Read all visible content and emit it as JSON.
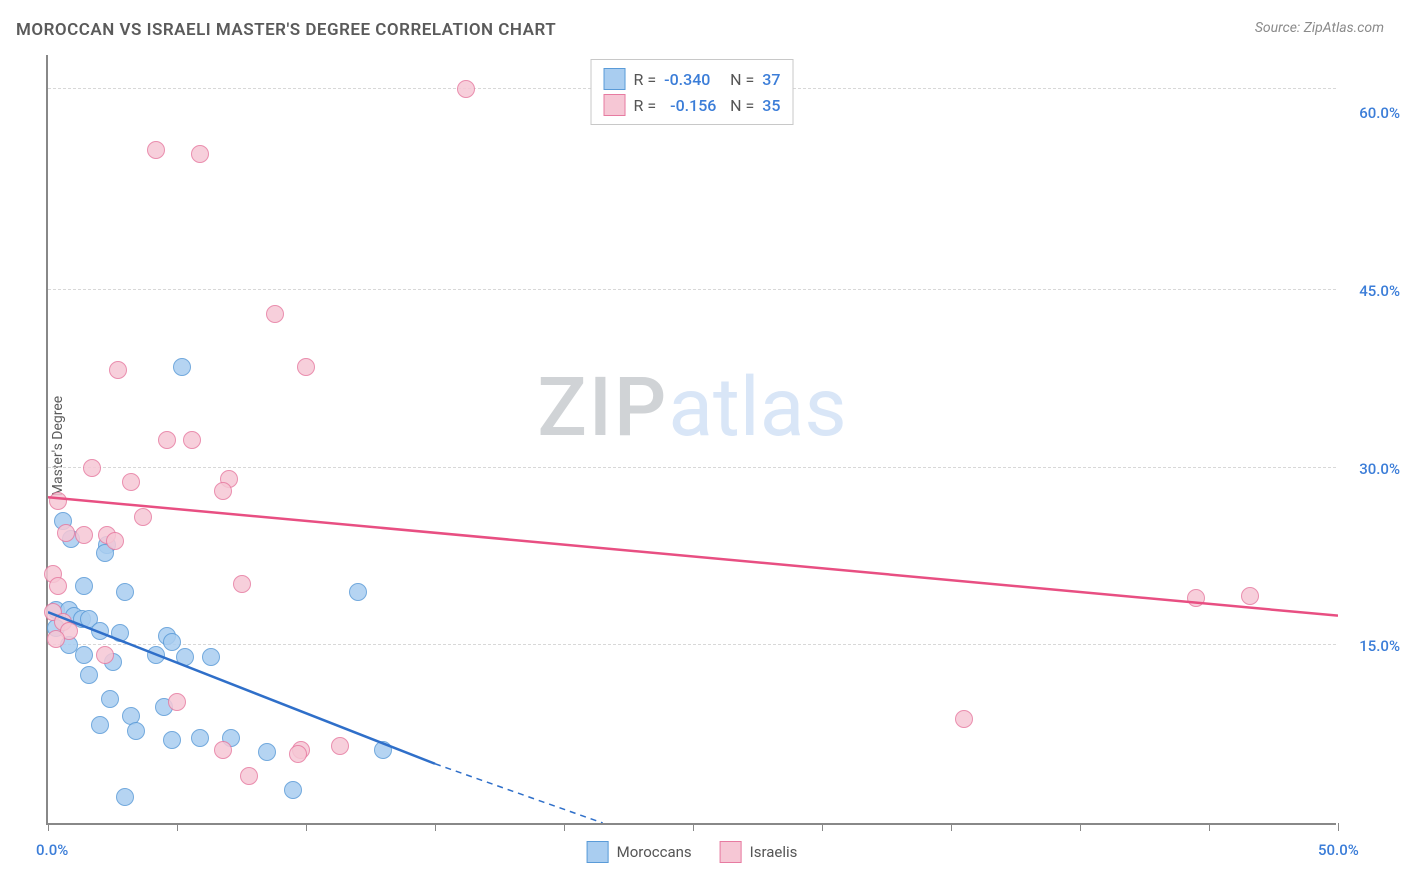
{
  "title": "MOROCCAN VS ISRAELI MASTER'S DEGREE CORRELATION CHART",
  "source": "Source: ZipAtlas.com",
  "y_axis_label": "Master's Degree",
  "watermark": {
    "part1": "ZIP",
    "part2": "atlas"
  },
  "chart": {
    "type": "scatter",
    "xlim": [
      0,
      50
    ],
    "ylim": [
      0,
      65
    ],
    "background_color": "#ffffff",
    "grid_color": "#d8d8d8",
    "x_axis": {
      "tick_positions": [
        0,
        5,
        10,
        15,
        20,
        25,
        30,
        35,
        40,
        45,
        50
      ],
      "labels": [
        {
          "pos": 0,
          "text": "0.0%"
        },
        {
          "pos": 50,
          "text": "50.0%"
        }
      ],
      "label_color": "#3b7dd8",
      "label_fontsize": 15
    },
    "y_axis": {
      "grid_positions": [
        15,
        30,
        45,
        62
      ],
      "labels": [
        {
          "pos": 15,
          "text": "15.0%"
        },
        {
          "pos": 30,
          "text": "30.0%"
        },
        {
          "pos": 45,
          "text": "45.0%"
        },
        {
          "pos": 60,
          "text": "60.0%"
        }
      ],
      "label_color": "#3b7dd8",
      "label_fontsize": 15
    },
    "series": [
      {
        "name": "Moroccans",
        "marker_fill": "#a9cdf0",
        "marker_stroke": "#5a9bd8",
        "marker_radius": 9,
        "marker_opacity": 0.85,
        "trend": {
          "color": "#2f6fc9",
          "width": 2.5,
          "x1": 0,
          "y1": 17.8,
          "x2_solid": 15,
          "y2_solid": 5.0,
          "x2_dash": 21.5,
          "y2_dash": 0
        },
        "points": [
          {
            "x": 5.2,
            "y": 38.5
          },
          {
            "x": 0.6,
            "y": 25.5
          },
          {
            "x": 0.9,
            "y": 24.0
          },
          {
            "x": 2.3,
            "y": 23.5
          },
          {
            "x": 2.2,
            "y": 22.8
          },
          {
            "x": 1.4,
            "y": 20.0
          },
          {
            "x": 3.0,
            "y": 19.5
          },
          {
            "x": 12.0,
            "y": 19.5
          },
          {
            "x": 0.3,
            "y": 18.0
          },
          {
            "x": 0.8,
            "y": 18.0
          },
          {
            "x": 1.0,
            "y": 17.5
          },
          {
            "x": 1.3,
            "y": 17.2
          },
          {
            "x": 1.6,
            "y": 17.2
          },
          {
            "x": 0.3,
            "y": 16.5
          },
          {
            "x": 2.0,
            "y": 16.2
          },
          {
            "x": 2.8,
            "y": 16.0
          },
          {
            "x": 4.6,
            "y": 15.8
          },
          {
            "x": 4.8,
            "y": 15.3
          },
          {
            "x": 0.8,
            "y": 15.0
          },
          {
            "x": 4.2,
            "y": 14.2
          },
          {
            "x": 1.4,
            "y": 14.2
          },
          {
            "x": 2.5,
            "y": 13.6
          },
          {
            "x": 5.3,
            "y": 14.0
          },
          {
            "x": 6.3,
            "y": 14.0
          },
          {
            "x": 1.6,
            "y": 12.5
          },
          {
            "x": 2.4,
            "y": 10.5
          },
          {
            "x": 3.2,
            "y": 9.0
          },
          {
            "x": 4.5,
            "y": 9.8
          },
          {
            "x": 2.0,
            "y": 8.3
          },
          {
            "x": 3.4,
            "y": 7.8
          },
          {
            "x": 4.8,
            "y": 7.0
          },
          {
            "x": 5.9,
            "y": 7.2
          },
          {
            "x": 7.1,
            "y": 7.2
          },
          {
            "x": 13.0,
            "y": 6.2
          },
          {
            "x": 9.5,
            "y": 2.8
          },
          {
            "x": 3.0,
            "y": 2.2
          },
          {
            "x": 8.5,
            "y": 6.0
          }
        ]
      },
      {
        "name": "Israelis",
        "marker_fill": "#f6c7d5",
        "marker_stroke": "#e77ba1",
        "marker_radius": 9,
        "marker_opacity": 0.85,
        "trend": {
          "color": "#e84f82",
          "width": 2.5,
          "x1": 0,
          "y1": 27.5,
          "x2_solid": 50,
          "y2_solid": 17.5
        },
        "points": [
          {
            "x": 16.2,
            "y": 62.0
          },
          {
            "x": 4.2,
            "y": 56.8
          },
          {
            "x": 5.9,
            "y": 56.5
          },
          {
            "x": 8.8,
            "y": 43.0
          },
          {
            "x": 2.7,
            "y": 38.2
          },
          {
            "x": 10.0,
            "y": 38.5
          },
          {
            "x": 4.6,
            "y": 32.3
          },
          {
            "x": 5.6,
            "y": 32.3
          },
          {
            "x": 1.7,
            "y": 30.0
          },
          {
            "x": 3.2,
            "y": 28.8
          },
          {
            "x": 7.0,
            "y": 29.0
          },
          {
            "x": 6.8,
            "y": 28.0
          },
          {
            "x": 0.4,
            "y": 27.2
          },
          {
            "x": 3.7,
            "y": 25.8
          },
          {
            "x": 0.7,
            "y": 24.5
          },
          {
            "x": 1.4,
            "y": 24.3
          },
          {
            "x": 2.3,
            "y": 24.3
          },
          {
            "x": 2.6,
            "y": 23.8
          },
          {
            "x": 0.2,
            "y": 21.0
          },
          {
            "x": 0.4,
            "y": 20.0
          },
          {
            "x": 7.5,
            "y": 20.2
          },
          {
            "x": 44.5,
            "y": 19.0
          },
          {
            "x": 46.6,
            "y": 19.2
          },
          {
            "x": 0.2,
            "y": 17.8
          },
          {
            "x": 0.6,
            "y": 17.0
          },
          {
            "x": 0.8,
            "y": 16.2
          },
          {
            "x": 0.3,
            "y": 15.5
          },
          {
            "x": 2.2,
            "y": 14.2
          },
          {
            "x": 5.0,
            "y": 10.2
          },
          {
            "x": 35.5,
            "y": 8.8
          },
          {
            "x": 6.8,
            "y": 6.2
          },
          {
            "x": 9.8,
            "y": 6.2
          },
          {
            "x": 11.3,
            "y": 6.5
          },
          {
            "x": 7.8,
            "y": 4.0
          },
          {
            "x": 9.7,
            "y": 5.8
          }
        ]
      }
    ]
  },
  "legend_top": {
    "rows": [
      {
        "swatch_fill": "#a9cdf0",
        "swatch_stroke": "#5a9bd8",
        "r_label": "R =",
        "r_val": "-0.340",
        "n_label": "N =",
        "n_val": "37"
      },
      {
        "swatch_fill": "#f6c7d5",
        "swatch_stroke": "#e77ba1",
        "r_label": "R =",
        "r_val": "-0.156",
        "n_label": "N =",
        "n_val": "35"
      }
    ]
  },
  "legend_bottom": {
    "items": [
      {
        "swatch_fill": "#a9cdf0",
        "swatch_stroke": "#5a9bd8",
        "label": "Moroccans"
      },
      {
        "swatch_fill": "#f6c7d5",
        "swatch_stroke": "#e77ba1",
        "label": "Israelis"
      }
    ]
  }
}
